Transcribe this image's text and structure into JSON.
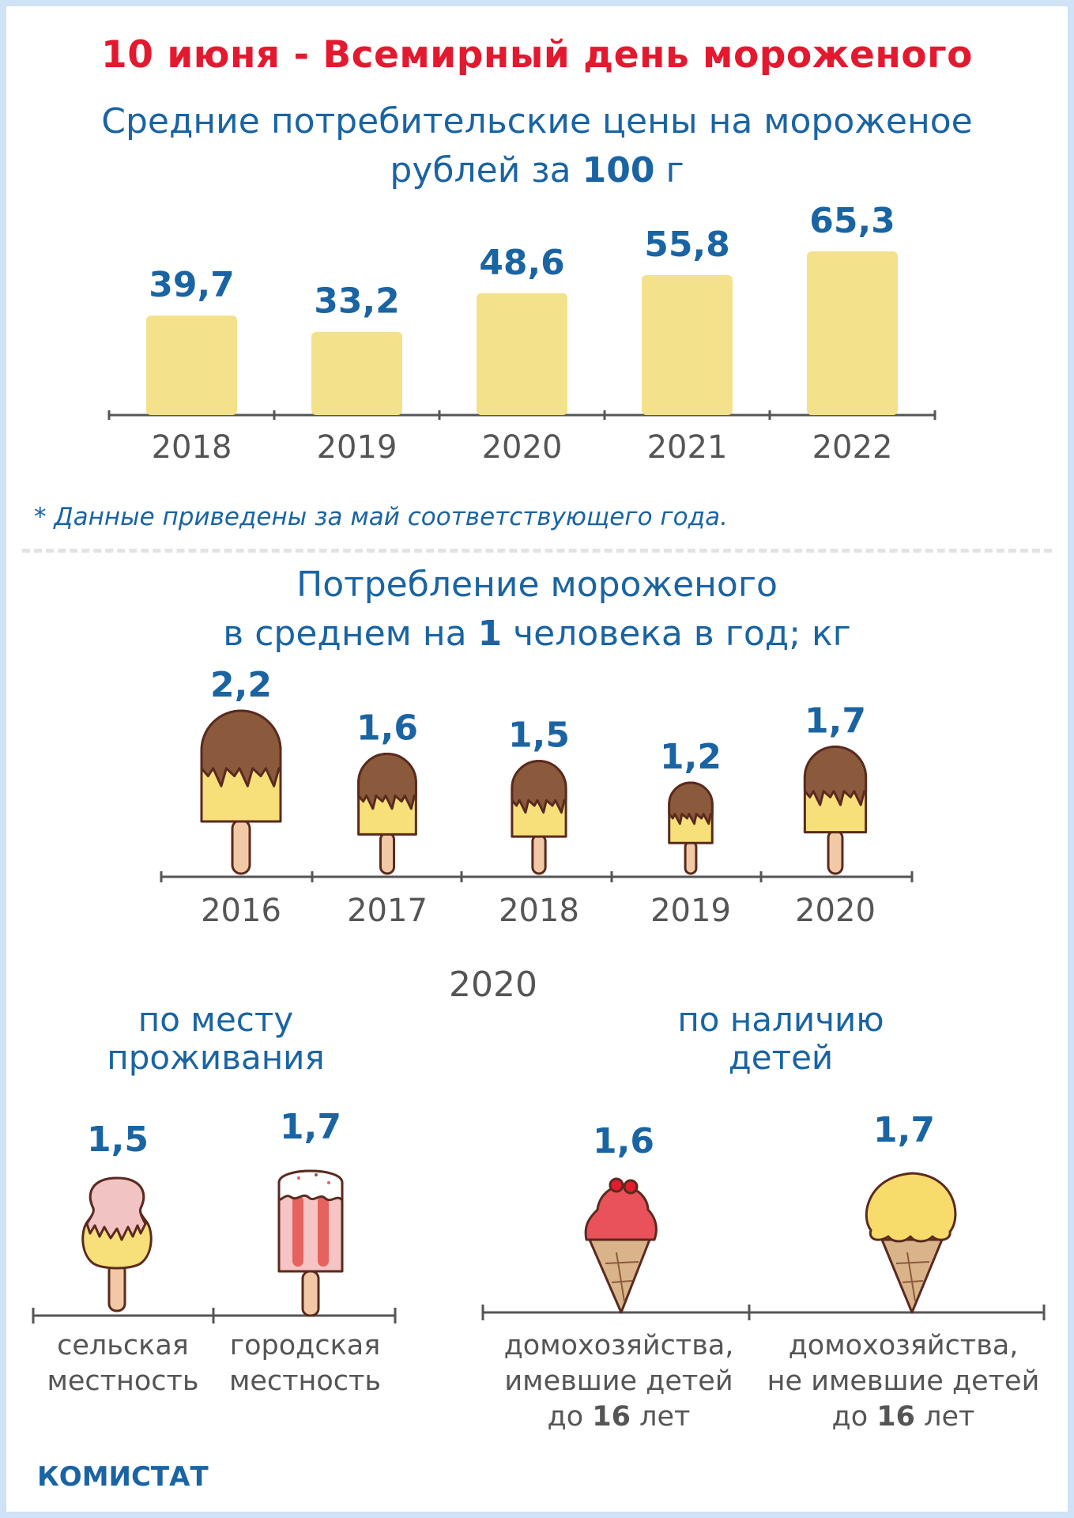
{
  "title": "10 июня - Всемирный день мороженого",
  "prices": {
    "title": "Средние потребительские цены на мороженое",
    "unit_prefix": "рублей за ",
    "unit_bold": "100",
    "unit_suffix": " г",
    "footnote": "* Данные приведены за май соответствующего года."
  },
  "consumption": {
    "title_line1": "Потребление мороженого",
    "title_prefix": "в среднем на ",
    "title_bold": "1",
    "title_suffix": " человека в год; кг"
  },
  "breakdown": {
    "year": "2020",
    "residence_title_line1": "по месту",
    "residence_title_line2": "проживания",
    "children_title_line1": "по наличию",
    "children_title_line2": "детей",
    "items": [
      {
        "label_lines": [
          "сельская",
          "местность"
        ],
        "value": "1,5",
        "icon": "pink-popsicle-icon"
      },
      {
        "label_lines": [
          "городская",
          "местность"
        ],
        "value": "1,7",
        "icon": "striped-popsicle-icon"
      },
      {
        "label_lines": [
          "домохозяйства,",
          "имевшие детей"
        ],
        "label_last_prefix": "до ",
        "label_last_bold": "16",
        "label_last_suffix": " лет",
        "value": "1,6",
        "icon": "cherry-cone-icon"
      },
      {
        "label_lines": [
          "домохозяйства,",
          "не имевшие детей"
        ],
        "label_last_prefix": "до ",
        "label_last_bold": "16",
        "label_last_suffix": " лет",
        "value": "1,7",
        "icon": "vanilla-cone-icon"
      }
    ]
  },
  "brand": "КОМИСТАТ",
  "colors": {
    "title_red": "#e3192f",
    "blue": "#1a64a3",
    "bar_yellow": "#f4e18b",
    "chocolate": "#8b5a3c",
    "axis_gray": "#555555"
  },
  "chart_data": [
    {
      "type": "bar",
      "title": "Средние потребительские цены на мороженое",
      "subtitle": "рублей за 100 г",
      "categories": [
        "2018",
        "2019",
        "2020",
        "2021",
        "2022"
      ],
      "values": [
        39.7,
        33.2,
        48.6,
        55.8,
        65.3
      ],
      "value_labels": [
        "39,7",
        "33,2",
        "48,6",
        "55,8",
        "65,3"
      ],
      "ylim": [
        0,
        70
      ],
      "grid": false,
      "legend": "none"
    },
    {
      "type": "bar",
      "title": "Потребление мороженого",
      "subtitle": "в среднем на 1 человека в год; кг",
      "categories": [
        "2016",
        "2017",
        "2018",
        "2019",
        "2020"
      ],
      "values": [
        2.2,
        1.6,
        1.5,
        1.2,
        1.7
      ],
      "value_labels": [
        "2,2",
        "1,6",
        "1,5",
        "1,2",
        "1,7"
      ],
      "grid": false,
      "legend": "none"
    }
  ]
}
